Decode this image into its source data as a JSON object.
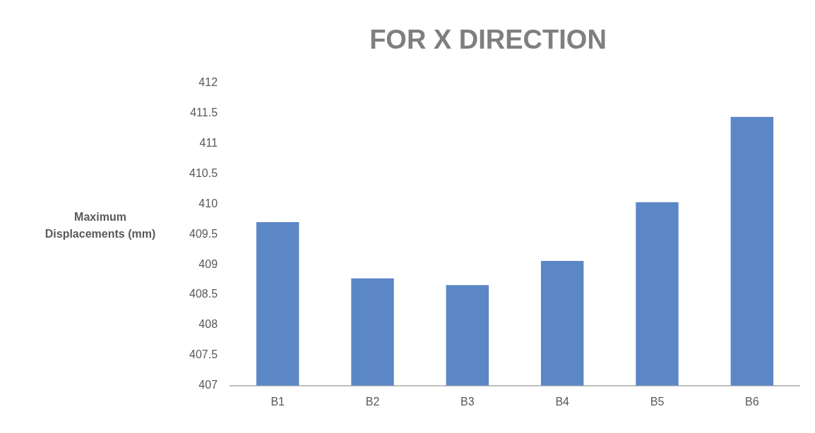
{
  "chart_data": {
    "type": "bar",
    "title": "FOR X DIRECTION",
    "ylabel": "Maximum Displacements (mm)",
    "categories": [
      "B1",
      "B2",
      "B3",
      "B4",
      "B5",
      "B6"
    ],
    "values": [
      409.7,
      408.77,
      408.66,
      409.06,
      410.03,
      411.44
    ],
    "color": "#5b87c6",
    "ylim": [
      407,
      412
    ],
    "yticks": [
      407,
      407.5,
      408,
      408.5,
      409,
      409.5,
      410,
      410.5,
      411,
      411.5,
      412
    ],
    "grid": false,
    "legend": false
  }
}
